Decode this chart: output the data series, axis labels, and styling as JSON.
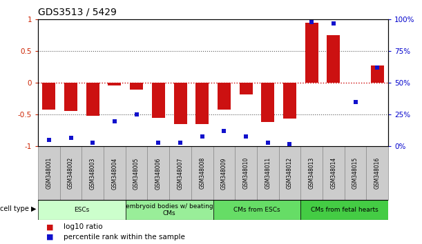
{
  "title": "GDS3513 / 5429",
  "samples": [
    "GSM348001",
    "GSM348002",
    "GSM348003",
    "GSM348004",
    "GSM348005",
    "GSM348006",
    "GSM348007",
    "GSM348008",
    "GSM348009",
    "GSM348010",
    "GSM348011",
    "GSM348012",
    "GSM348013",
    "GSM348014",
    "GSM348015",
    "GSM348016"
  ],
  "log10_ratio": [
    -0.42,
    -0.44,
    -0.52,
    -0.04,
    -0.1,
    -0.55,
    -0.65,
    -0.65,
    -0.42,
    -0.18,
    -0.62,
    -0.56,
    0.95,
    0.75,
    0.0,
    0.28
  ],
  "percentile_rank": [
    5,
    7,
    3,
    20,
    25,
    3,
    3,
    8,
    12,
    8,
    3,
    2,
    98,
    97,
    35,
    62
  ],
  "cell_type_groups": [
    {
      "label": "ESCs",
      "start": 0,
      "end": 3,
      "color": "#ccffcc"
    },
    {
      "label": "embryoid bodies w/ beating\nCMs",
      "start": 4,
      "end": 7,
      "color": "#99ee99"
    },
    {
      "label": "CMs from ESCs",
      "start": 8,
      "end": 11,
      "color": "#66dd66"
    },
    {
      "label": "CMs from fetal hearts",
      "start": 12,
      "end": 15,
      "color": "#44cc44"
    }
  ],
  "bar_color": "#cc1111",
  "dot_color": "#1111cc",
  "ylim_left": [
    -1.0,
    1.0
  ],
  "ylim_right": [
    0,
    100
  ],
  "yticks_left": [
    -1.0,
    -0.5,
    0.0,
    0.5,
    1.0
  ],
  "ytick_labels_left": [
    "-1",
    "-0.5",
    "0",
    "0.5",
    "1"
  ],
  "yticks_right": [
    0,
    25,
    50,
    75,
    100
  ],
  "ytick_labels_right": [
    "0%",
    "25%",
    "50%",
    "75%",
    "100%"
  ],
  "zero_line_color": "#cc0000",
  "dotted_line_color": "#555555",
  "legend_red_label": "log10 ratio",
  "legend_blue_label": "percentile rank within the sample",
  "cell_type_label": "cell type",
  "sample_box_color": "#cccccc",
  "sample_box_edge": "#888888"
}
